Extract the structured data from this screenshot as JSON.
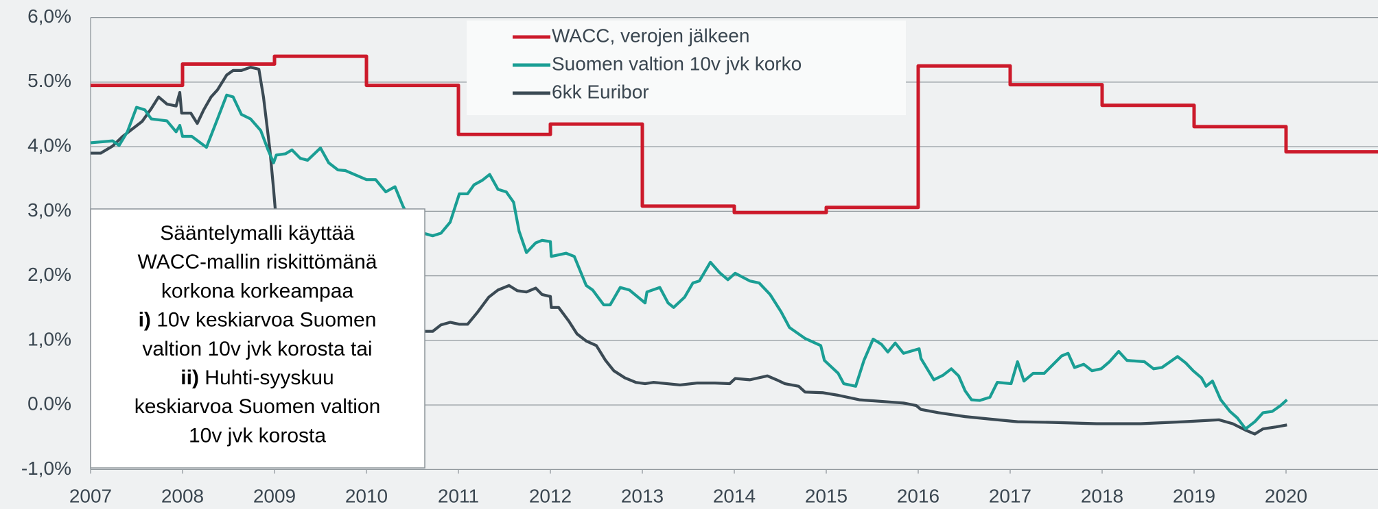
{
  "chart_data": {
    "type": "line",
    "xlim": [
      2007,
      2021
    ],
    "xticks": [
      2007,
      2008,
      2009,
      2010,
      2011,
      2012,
      2013,
      2014,
      2015,
      2016,
      2017,
      2018,
      2019,
      2020
    ],
    "ylim": [
      -1,
      6
    ],
    "yticks": [
      {
        "value": -1,
        "label": "-1,0%"
      },
      {
        "value": 0,
        "label": "0.0%"
      },
      {
        "value": 1,
        "label": "1,0%"
      },
      {
        "value": 2,
        "label": "2,0%"
      },
      {
        "value": 3,
        "label": "3,0%"
      },
      {
        "value": 4,
        "label": "4,0%"
      },
      {
        "value": 5,
        "label": "5.0%"
      },
      {
        "value": 6,
        "label": "6,0%"
      }
    ],
    "grid": true,
    "legend": "top",
    "series": [
      {
        "name": "WACC, verojen jälkeen",
        "color": "#cc1a2b",
        "x": [
          2007,
          2008,
          2008,
          2009,
          2009,
          2010,
          2010,
          2011,
          2011,
          2012,
          2012,
          2013,
          2013,
          2014,
          2014,
          2015,
          2015,
          2016,
          2016,
          2017,
          2017,
          2018,
          2018,
          2019,
          2019,
          2020,
          2020,
          2021
        ],
        "values": [
          4.95,
          4.95,
          5.28,
          5.28,
          5.4,
          5.4,
          4.95,
          4.95,
          4.19,
          4.19,
          4.35,
          4.35,
          3.08,
          3.08,
          2.98,
          2.98,
          3.06,
          3.06,
          5.25,
          5.25,
          4.96,
          4.96,
          4.64,
          4.64,
          4.31,
          4.31,
          3.92,
          3.92
        ]
      },
      {
        "name": "Suomen valtion 10v jvk korko",
        "color": "#1a9e94",
        "x": [
          2007.0,
          2007.24,
          2007.31,
          2007.4,
          2007.5,
          2007.59,
          2007.66,
          2007.83,
          2007.93,
          2007.97,
          2008.0,
          2008.1,
          2008.26,
          2008.38,
          2008.48,
          2008.55,
          2008.64,
          2008.74,
          2008.85,
          2008.93,
          2008.99,
          2009.02,
          2009.12,
          2009.19,
          2009.28,
          2009.36,
          2009.5,
          2009.59,
          2009.69,
          2009.77,
          2010.0,
          2010.1,
          2010.21,
          2010.31,
          2010.4,
          2010.5,
          2010.62,
          2010.72,
          2010.81,
          2010.91,
          2011.01,
          2011.1,
          2011.17,
          2011.26,
          2011.34,
          2011.43,
          2011.52,
          2011.6,
          2011.66,
          2011.74,
          2011.84,
          2011.91,
          2012.0,
          2012.01,
          2012.17,
          2012.26,
          2012.39,
          2012.46,
          2012.58,
          2012.65,
          2012.76,
          2012.86,
          2013.03,
          2013.05,
          2013.19,
          2013.28,
          2013.34,
          2013.46,
          2013.55,
          2013.62,
          2013.74,
          2013.84,
          2013.93,
          2014.01,
          2014.17,
          2014.27,
          2014.39,
          2014.51,
          2014.6,
          2014.77,
          2014.94,
          2014.98,
          2015.13,
          2015.19,
          2015.32,
          2015.41,
          2015.51,
          2015.6,
          2015.67,
          2015.75,
          2015.84,
          2016.01,
          2016.03,
          2016.17,
          2016.27,
          2016.36,
          2016.44,
          2016.51,
          2016.58,
          2016.67,
          2016.78,
          2016.86,
          2017.01,
          2017.08,
          2017.15,
          2017.25,
          2017.37,
          2017.56,
          2017.63,
          2017.7,
          2017.8,
          2017.89,
          2017.99,
          2018.08,
          2018.18,
          2018.27,
          2018.46,
          2018.56,
          2018.65,
          2018.82,
          2018.91,
          2018.99,
          2019.08,
          2019.13,
          2019.2,
          2019.29,
          2019.39,
          2019.47,
          2019.56,
          2019.66,
          2019.75,
          2019.85,
          2019.94,
          2020.01
        ],
        "values": [
          4.06,
          4.09,
          4.02,
          4.23,
          4.61,
          4.57,
          4.43,
          4.4,
          4.23,
          4.33,
          4.16,
          4.16,
          3.99,
          4.43,
          4.8,
          4.77,
          4.5,
          4.43,
          4.25,
          3.95,
          3.75,
          3.87,
          3.89,
          3.95,
          3.82,
          3.79,
          3.98,
          3.75,
          3.64,
          3.63,
          3.49,
          3.49,
          3.3,
          3.38,
          3.07,
          2.8,
          2.66,
          2.62,
          2.66,
          2.83,
          3.27,
          3.27,
          3.41,
          3.48,
          3.57,
          3.34,
          3.3,
          3.14,
          2.69,
          2.36,
          2.51,
          2.55,
          2.53,
          2.3,
          2.35,
          2.3,
          1.85,
          1.78,
          1.55,
          1.55,
          1.82,
          1.78,
          1.58,
          1.75,
          1.82,
          1.58,
          1.51,
          1.67,
          1.89,
          1.92,
          2.21,
          2.05,
          1.94,
          2.04,
          1.92,
          1.89,
          1.71,
          1.44,
          1.2,
          1.03,
          0.92,
          0.69,
          0.49,
          0.33,
          0.29,
          0.69,
          1.02,
          0.94,
          0.82,
          0.96,
          0.8,
          0.87,
          0.72,
          0.39,
          0.46,
          0.56,
          0.45,
          0.22,
          0.08,
          0.07,
          0.12,
          0.35,
          0.33,
          0.67,
          0.37,
          0.49,
          0.49,
          0.76,
          0.8,
          0.58,
          0.63,
          0.53,
          0.56,
          0.67,
          0.83,
          0.69,
          0.67,
          0.56,
          0.58,
          0.75,
          0.65,
          0.53,
          0.42,
          0.29,
          0.37,
          0.08,
          -0.1,
          -0.2,
          -0.37,
          -0.26,
          -0.12,
          -0.1,
          -0.01,
          0.08
        ]
      },
      {
        "name": "6kk Euribor",
        "color": "#3b4a54",
        "x": [
          2007.0,
          2007.11,
          2007.24,
          2007.35,
          2007.45,
          2007.56,
          2007.66,
          2007.74,
          2007.83,
          2007.93,
          2007.97,
          2007.99,
          2008.09,
          2008.16,
          2008.23,
          2008.31,
          2008.38,
          2008.48,
          2008.55,
          2008.64,
          2008.74,
          2008.83,
          2008.88,
          2008.95,
          2008.99,
          2009.01,
          2009.1,
          2009.3,
          2009.5,
          2009.7,
          2010.0,
          2010.3,
          2010.5,
          2010.62,
          2010.72,
          2010.81,
          2010.91,
          2011.01,
          2011.1,
          2011.21,
          2011.33,
          2011.43,
          2011.55,
          2011.64,
          2011.74,
          2011.84,
          2011.91,
          2012.0,
          2012.01,
          2012.09,
          2012.2,
          2012.29,
          2012.39,
          2012.5,
          2012.6,
          2012.69,
          2012.81,
          2012.93,
          2013.03,
          2013.12,
          2013.27,
          2013.41,
          2013.6,
          2013.79,
          2013.95,
          2014.01,
          2014.17,
          2014.36,
          2014.46,
          2014.55,
          2014.7,
          2014.77,
          2014.96,
          2015.13,
          2015.36,
          2015.65,
          2015.84,
          2015.98,
          2016.03,
          2016.22,
          2016.51,
          2016.79,
          2017.08,
          2017.46,
          2017.94,
          2018.42,
          2018.89,
          2019.27,
          2019.42,
          2019.56,
          2019.66,
          2019.75,
          2019.89,
          2020.01
        ],
        "values": [
          3.9,
          3.9,
          4.01,
          4.16,
          4.27,
          4.39,
          4.59,
          4.77,
          4.66,
          4.63,
          4.84,
          4.52,
          4.52,
          4.36,
          4.57,
          4.77,
          4.88,
          5.11,
          5.18,
          5.18,
          5.23,
          5.2,
          4.77,
          3.95,
          3.34,
          3.0,
          2.5,
          1.6,
          1.3,
          1.1,
          1.0,
          1.0,
          1.05,
          1.14,
          1.14,
          1.24,
          1.28,
          1.25,
          1.25,
          1.44,
          1.67,
          1.78,
          1.85,
          1.77,
          1.75,
          1.81,
          1.71,
          1.68,
          1.51,
          1.51,
          1.3,
          1.1,
          0.99,
          0.92,
          0.69,
          0.53,
          0.42,
          0.35,
          0.33,
          0.35,
          0.33,
          0.31,
          0.34,
          0.34,
          0.33,
          0.41,
          0.39,
          0.45,
          0.39,
          0.33,
          0.29,
          0.2,
          0.19,
          0.15,
          0.08,
          0.05,
          0.03,
          -0.01,
          -0.07,
          -0.12,
          -0.18,
          -0.22,
          -0.26,
          -0.27,
          -0.29,
          -0.29,
          -0.26,
          -0.23,
          -0.29,
          -0.39,
          -0.45,
          -0.37,
          -0.34,
          -0.31
        ]
      }
    ],
    "annotation": [
      [
        {
          "text": "Sääntelymalli käyttää"
        }
      ],
      [
        {
          "text": "WACC-mallin riskittömänä"
        }
      ],
      [
        {
          "text": "korkona korkeampaa"
        }
      ],
      [
        {
          "text": "i)",
          "bold": true
        },
        {
          "text": " 10v keskiarvoa Suomen"
        }
      ],
      [
        {
          "text": "valtion 10v jvk korosta tai"
        }
      ],
      [
        {
          "text": "ii)",
          "bold": true
        },
        {
          "text": " Huhti-syyskuu"
        }
      ],
      [
        {
          "text": "keskiarvoa Suomen valtion"
        }
      ],
      [
        {
          "text": "10v jvk korosta"
        }
      ]
    ]
  }
}
